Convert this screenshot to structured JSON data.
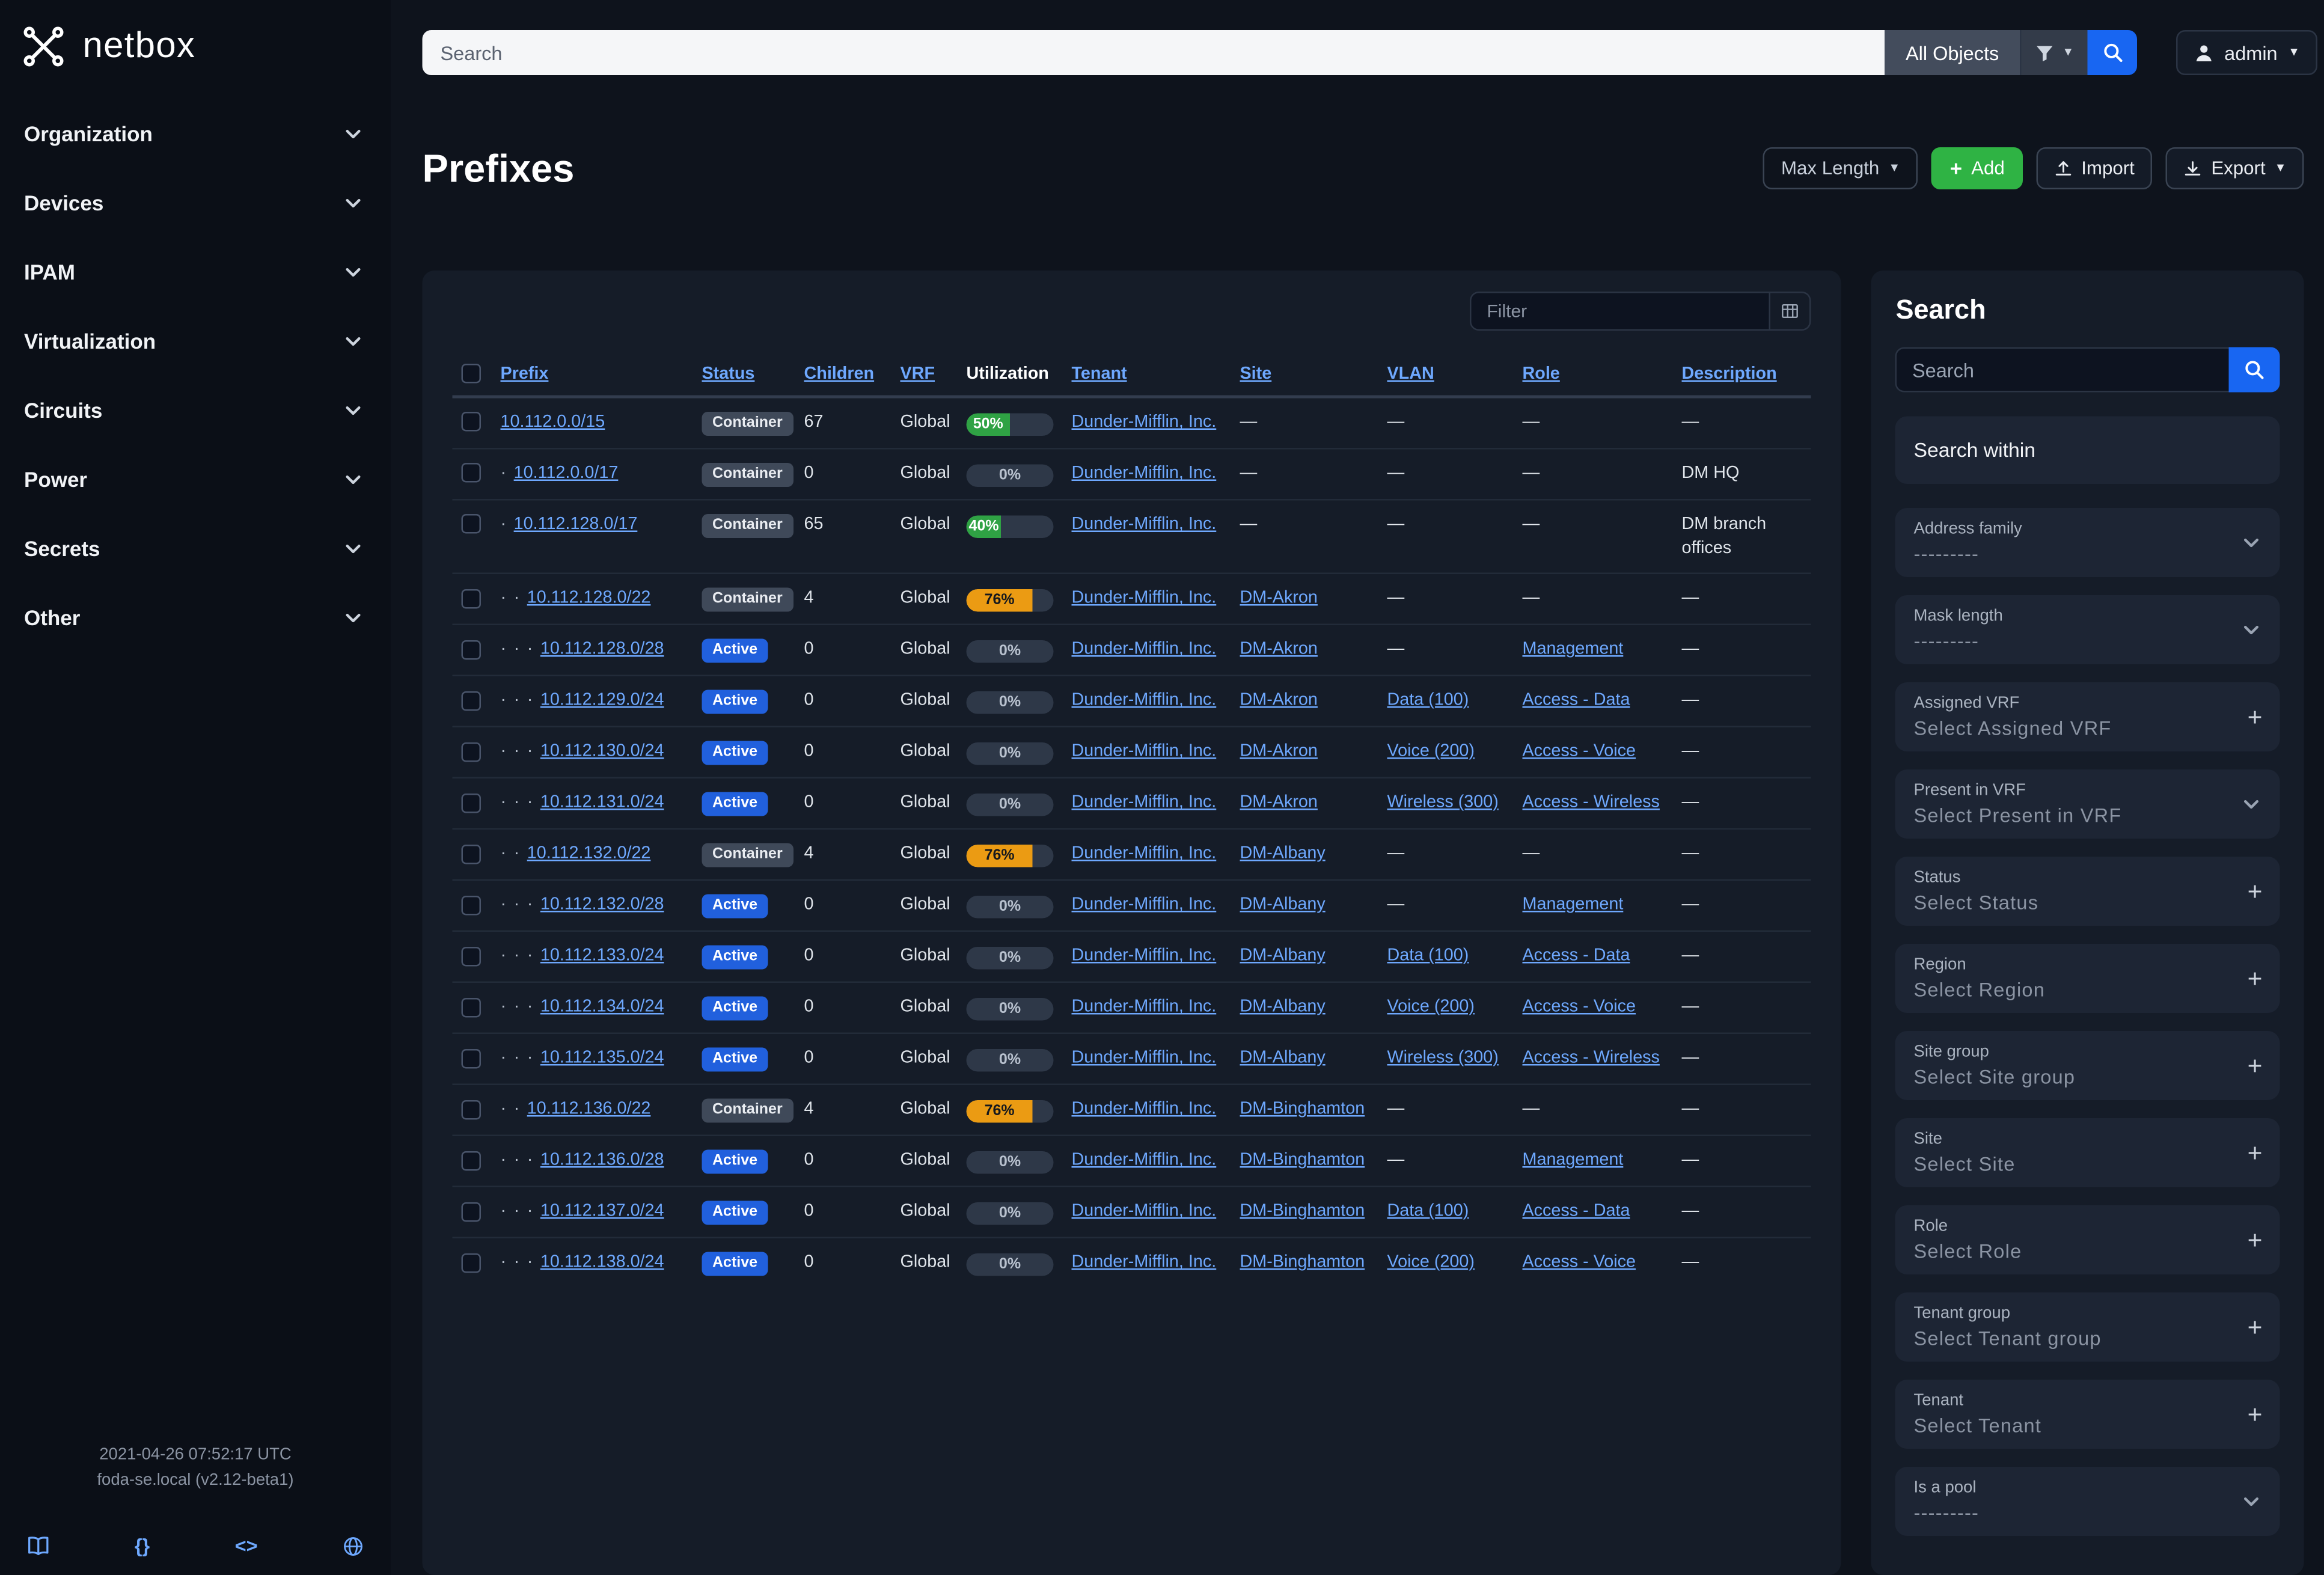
{
  "brand": {
    "name": "netbox"
  },
  "topbar": {
    "search_placeholder": "Search",
    "object_type": "All Objects",
    "user": "admin"
  },
  "sidebar": {
    "items": [
      {
        "label": "Organization"
      },
      {
        "label": "Devices"
      },
      {
        "label": "IPAM"
      },
      {
        "label": "Virtualization"
      },
      {
        "label": "Circuits"
      },
      {
        "label": "Power"
      },
      {
        "label": "Secrets"
      },
      {
        "label": "Other"
      }
    ],
    "footer": {
      "timestamp": "2021-04-26 07:52:17 UTC",
      "version": "foda-se.local (v2.12-beta1)",
      "braces_icon_text": "{}",
      "code_icon_text": "<>"
    }
  },
  "page": {
    "title": "Prefixes",
    "toolbar": {
      "max_length": "Max Length",
      "add": "Add",
      "import": "Import",
      "export": "Export"
    }
  },
  "table": {
    "filter_placeholder": "Filter",
    "empty_placeholder": "—",
    "depth_dot": "·",
    "columns": [
      {
        "label": "Prefix",
        "sortable": true
      },
      {
        "label": "Status",
        "sortable": true
      },
      {
        "label": "Children",
        "sortable": true
      },
      {
        "label": "VRF",
        "sortable": true
      },
      {
        "label": "Utilization",
        "sortable": false
      },
      {
        "label": "Tenant",
        "sortable": true
      },
      {
        "label": "Site",
        "sortable": true
      },
      {
        "label": "VLAN",
        "sortable": true
      },
      {
        "label": "Role",
        "sortable": true
      },
      {
        "label": "Description",
        "sortable": true
      }
    ],
    "rows": [
      {
        "depth": 0,
        "prefix": "10.112.0.0/15",
        "status": "Container",
        "children": "67",
        "vrf": "Global",
        "util": 50,
        "util_color": "green",
        "tenant": "Dunder-Mifflin, Inc.",
        "site": "",
        "vlan": "",
        "role": "",
        "description": ""
      },
      {
        "depth": 1,
        "prefix": "10.112.0.0/17",
        "status": "Container",
        "children": "0",
        "vrf": "Global",
        "util": 0,
        "util_color": "",
        "tenant": "Dunder-Mifflin, Inc.",
        "site": "",
        "vlan": "",
        "role": "",
        "description": "DM HQ"
      },
      {
        "depth": 1,
        "prefix": "10.112.128.0/17",
        "status": "Container",
        "children": "65",
        "vrf": "Global",
        "util": 40,
        "util_color": "green",
        "tenant": "Dunder-Mifflin, Inc.",
        "site": "",
        "vlan": "",
        "role": "",
        "description": "DM branch offices"
      },
      {
        "depth": 2,
        "prefix": "10.112.128.0/22",
        "status": "Container",
        "children": "4",
        "vrf": "Global",
        "util": 76,
        "util_color": "orange",
        "tenant": "Dunder-Mifflin, Inc.",
        "site": "DM-Akron",
        "vlan": "",
        "role": "",
        "description": ""
      },
      {
        "depth": 3,
        "prefix": "10.112.128.0/28",
        "status": "Active",
        "children": "0",
        "vrf": "Global",
        "util": 0,
        "util_color": "",
        "tenant": "Dunder-Mifflin, Inc.",
        "site": "DM-Akron",
        "vlan": "",
        "role": "Management",
        "description": ""
      },
      {
        "depth": 3,
        "prefix": "10.112.129.0/24",
        "status": "Active",
        "children": "0",
        "vrf": "Global",
        "util": 0,
        "util_color": "",
        "tenant": "Dunder-Mifflin, Inc.",
        "site": "DM-Akron",
        "vlan": "Data (100)",
        "role": "Access - Data",
        "description": ""
      },
      {
        "depth": 3,
        "prefix": "10.112.130.0/24",
        "status": "Active",
        "children": "0",
        "vrf": "Global",
        "util": 0,
        "util_color": "",
        "tenant": "Dunder-Mifflin, Inc.",
        "site": "DM-Akron",
        "vlan": "Voice (200)",
        "role": "Access - Voice",
        "description": ""
      },
      {
        "depth": 3,
        "prefix": "10.112.131.0/24",
        "status": "Active",
        "children": "0",
        "vrf": "Global",
        "util": 0,
        "util_color": "",
        "tenant": "Dunder-Mifflin, Inc.",
        "site": "DM-Akron",
        "vlan": "Wireless (300)",
        "role": "Access - Wireless",
        "description": ""
      },
      {
        "depth": 2,
        "prefix": "10.112.132.0/22",
        "status": "Container",
        "children": "4",
        "vrf": "Global",
        "util": 76,
        "util_color": "orange",
        "tenant": "Dunder-Mifflin, Inc.",
        "site": "DM-Albany",
        "vlan": "",
        "role": "",
        "description": ""
      },
      {
        "depth": 3,
        "prefix": "10.112.132.0/28",
        "status": "Active",
        "children": "0",
        "vrf": "Global",
        "util": 0,
        "util_color": "",
        "tenant": "Dunder-Mifflin, Inc.",
        "site": "DM-Albany",
        "vlan": "",
        "role": "Management",
        "description": ""
      },
      {
        "depth": 3,
        "prefix": "10.112.133.0/24",
        "status": "Active",
        "children": "0",
        "vrf": "Global",
        "util": 0,
        "util_color": "",
        "tenant": "Dunder-Mifflin, Inc.",
        "site": "DM-Albany",
        "vlan": "Data (100)",
        "role": "Access - Data",
        "description": ""
      },
      {
        "depth": 3,
        "prefix": "10.112.134.0/24",
        "status": "Active",
        "children": "0",
        "vrf": "Global",
        "util": 0,
        "util_color": "",
        "tenant": "Dunder-Mifflin, Inc.",
        "site": "DM-Albany",
        "vlan": "Voice (200)",
        "role": "Access - Voice",
        "description": ""
      },
      {
        "depth": 3,
        "prefix": "10.112.135.0/24",
        "status": "Active",
        "children": "0",
        "vrf": "Global",
        "util": 0,
        "util_color": "",
        "tenant": "Dunder-Mifflin, Inc.",
        "site": "DM-Albany",
        "vlan": "Wireless (300)",
        "role": "Access - Wireless",
        "description": ""
      },
      {
        "depth": 2,
        "prefix": "10.112.136.0/22",
        "status": "Container",
        "children": "4",
        "vrf": "Global",
        "util": 76,
        "util_color": "orange",
        "tenant": "Dunder-Mifflin, Inc.",
        "site": "DM-Binghamton",
        "vlan": "",
        "role": "",
        "description": ""
      },
      {
        "depth": 3,
        "prefix": "10.112.136.0/28",
        "status": "Active",
        "children": "0",
        "vrf": "Global",
        "util": 0,
        "util_color": "",
        "tenant": "Dunder-Mifflin, Inc.",
        "site": "DM-Binghamton",
        "vlan": "",
        "role": "Management",
        "description": ""
      },
      {
        "depth": 3,
        "prefix": "10.112.137.0/24",
        "status": "Active",
        "children": "0",
        "vrf": "Global",
        "util": 0,
        "util_color": "",
        "tenant": "Dunder-Mifflin, Inc.",
        "site": "DM-Binghamton",
        "vlan": "Data (100)",
        "role": "Access - Data",
        "description": ""
      },
      {
        "depth": 3,
        "prefix": "10.112.138.0/24",
        "status": "Active",
        "children": "0",
        "vrf": "Global",
        "util": 0,
        "util_color": "",
        "tenant": "Dunder-Mifflin, Inc.",
        "site": "DM-Binghamton",
        "vlan": "Voice (200)",
        "role": "Access - Voice",
        "description": ""
      }
    ]
  },
  "filters": {
    "title": "Search",
    "search_placeholder": "Search",
    "search_within": "Search within",
    "fields": [
      {
        "label": "Address family",
        "value": "---------",
        "control": "select"
      },
      {
        "label": "Mask length",
        "value": "---------",
        "control": "select"
      },
      {
        "label": "Assigned VRF",
        "value": "Select Assigned VRF",
        "control": "add"
      },
      {
        "label": "Present in VRF",
        "value": "Select Present in VRF",
        "control": "select"
      },
      {
        "label": "Status",
        "value": "Select Status",
        "control": "add"
      },
      {
        "label": "Region",
        "value": "Select Region",
        "control": "add"
      },
      {
        "label": "Site group",
        "value": "Select Site group",
        "control": "add"
      },
      {
        "label": "Site",
        "value": "Select Site",
        "control": "add"
      },
      {
        "label": "Role",
        "value": "Select Role",
        "control": "add"
      },
      {
        "label": "Tenant group",
        "value": "Select Tenant group",
        "control": "add"
      },
      {
        "label": "Tenant",
        "value": "Select Tenant",
        "control": "add"
      },
      {
        "label": "Is a pool",
        "value": "---------",
        "control": "select"
      }
    ]
  },
  "colors": {
    "accent_blue": "#1866f2",
    "link_blue": "#6ea8fe",
    "success_green": "#2fa244",
    "warning_orange": "#eb9b13",
    "add_button_green": "#2fb344"
  }
}
